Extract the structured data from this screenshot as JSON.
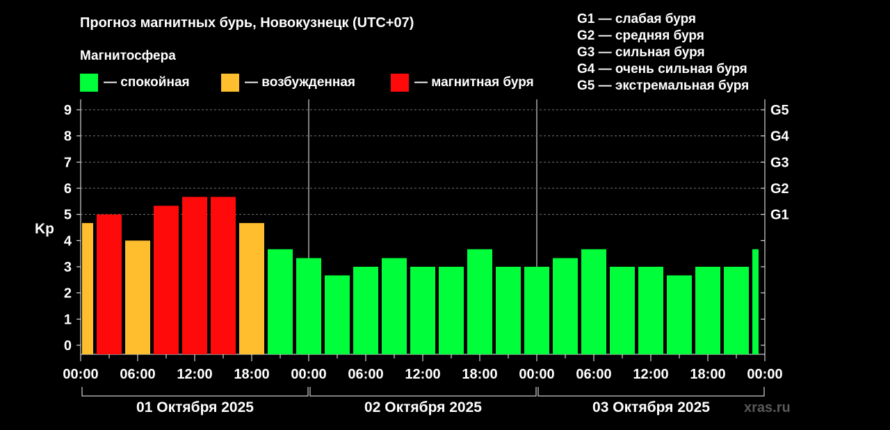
{
  "header": {
    "title": "Прогноз магнитных бурь, Новокузнецк (UTC+07)",
    "magnetosphere_label": "Магнитосфера"
  },
  "legend": [
    {
      "label": "— спокойная",
      "color": "#00ff3a"
    },
    {
      "label": "— возбужденная",
      "color": "#ffbe2e"
    },
    {
      "label": "— магнитная буря",
      "color": "#ff0a0a"
    }
  ],
  "g_legend": [
    "G1 — слабая буря",
    "G2 — средняя буря",
    "G3 — сильная буря",
    "G4 — очень сильная буря",
    "G5 — экстремальная буря"
  ],
  "watermark": "xras.ru",
  "chart_data": {
    "type": "bar",
    "ylabel": "Kp",
    "ylim": [
      0,
      9
    ],
    "yticks": [
      "0",
      "1",
      "2",
      "3",
      "4",
      "5",
      "6",
      "7",
      "8",
      "9"
    ],
    "right_ticks": [
      {
        "value": 5,
        "label": "G1"
      },
      {
        "value": 6,
        "label": "G2"
      },
      {
        "value": 7,
        "label": "G3"
      },
      {
        "value": 8,
        "label": "G4"
      },
      {
        "value": 9,
        "label": "G5"
      }
    ],
    "xticks": [
      "00:00",
      "06:00",
      "12:00",
      "18:00",
      "00:00",
      "06:00",
      "12:00",
      "18:00",
      "00:00",
      "06:00",
      "12:00",
      "18:00",
      "00:00"
    ],
    "days": [
      "01 Октября 2025",
      "02 Октября 2025",
      "03 Октября 2025"
    ],
    "grid": true,
    "status_colors": {
      "quiet": "#00ff3a",
      "active": "#ffbe2e",
      "storm": "#ff0a0a"
    },
    "bars": [
      {
        "time": "01 Октября 00:00",
        "kp": 4.67,
        "status": "active"
      },
      {
        "time": "01 Октября 03:00",
        "kp": 5.0,
        "status": "storm"
      },
      {
        "time": "01 Октября 06:00",
        "kp": 4.0,
        "status": "active"
      },
      {
        "time": "01 Октября 09:00",
        "kp": 5.33,
        "status": "storm"
      },
      {
        "time": "01 Октября 12:00",
        "kp": 5.67,
        "status": "storm"
      },
      {
        "time": "01 Октября 15:00",
        "kp": 5.67,
        "status": "storm"
      },
      {
        "time": "01 Октября 18:00",
        "kp": 4.67,
        "status": "active"
      },
      {
        "time": "01 Октября 21:00",
        "kp": 3.67,
        "status": "quiet"
      },
      {
        "time": "02 Октября 00:00",
        "kp": 3.33,
        "status": "quiet"
      },
      {
        "time": "02 Октября 03:00",
        "kp": 2.67,
        "status": "quiet"
      },
      {
        "time": "02 Октября 06:00",
        "kp": 3.0,
        "status": "quiet"
      },
      {
        "time": "02 Октября 09:00",
        "kp": 3.33,
        "status": "quiet"
      },
      {
        "time": "02 Октября 12:00",
        "kp": 3.0,
        "status": "quiet"
      },
      {
        "time": "02 Октября 15:00",
        "kp": 3.0,
        "status": "quiet"
      },
      {
        "time": "02 Октября 18:00",
        "kp": 3.67,
        "status": "quiet"
      },
      {
        "time": "02 Октября 21:00",
        "kp": 3.0,
        "status": "quiet"
      },
      {
        "time": "03 Октября 00:00",
        "kp": 3.0,
        "status": "quiet"
      },
      {
        "time": "03 Октября 03:00",
        "kp": 3.33,
        "status": "quiet"
      },
      {
        "time": "03 Октября 06:00",
        "kp": 3.67,
        "status": "quiet"
      },
      {
        "time": "03 Октября 09:00",
        "kp": 3.0,
        "status": "quiet"
      },
      {
        "time": "03 Октября 12:00",
        "kp": 3.0,
        "status": "quiet"
      },
      {
        "time": "03 Октября 15:00",
        "kp": 2.67,
        "status": "quiet"
      },
      {
        "time": "03 Октября 18:00",
        "kp": 3.0,
        "status": "quiet"
      },
      {
        "time": "03 Октября 21:00",
        "kp": 3.0,
        "status": "quiet"
      },
      {
        "time": "04 Октября 00:00",
        "kp": 3.67,
        "status": "quiet"
      }
    ]
  }
}
